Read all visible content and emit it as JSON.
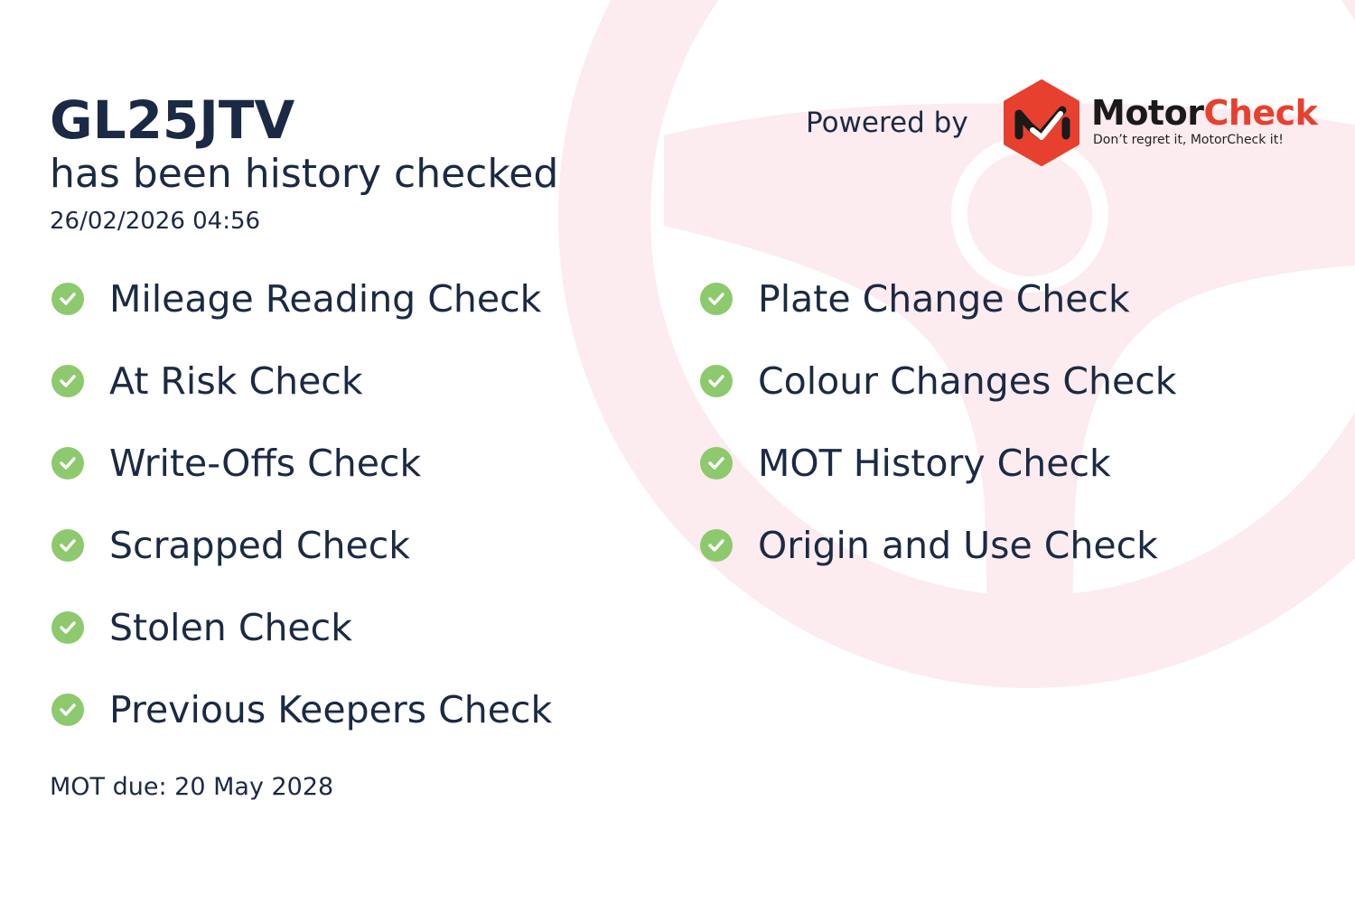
{
  "vehicle": {
    "registration": "GL25JTV",
    "subtitle": "has been history checked",
    "checked_at": "26/02/2026 04:56",
    "mot_due": "MOT due: 20 May 2028"
  },
  "branding": {
    "powered_by": "Powered by",
    "brand_part1": "Motor",
    "brand_part2": "Check",
    "tagline": "Don’t regret it, MotorCheck it!",
    "brand_red": "#e8402f",
    "brand_dark": "#1a1a1a"
  },
  "checks_left": [
    {
      "label": "Mileage Reading Check",
      "icon": "check-circle-icon"
    },
    {
      "label": "At Risk Check",
      "icon": "check-circle-icon"
    },
    {
      "label": "Write-Offs Check",
      "icon": "check-circle-icon"
    },
    {
      "label": "Scrapped Check",
      "icon": "check-circle-icon"
    },
    {
      "label": "Stolen Check",
      "icon": "check-circle-icon"
    },
    {
      "label": "Previous Keepers Check",
      "icon": "check-circle-icon"
    }
  ],
  "checks_right": [
    {
      "label": "Plate Change Check",
      "icon": "check-circle-icon"
    },
    {
      "label": "Colour Changes Check",
      "icon": "check-circle-icon"
    },
    {
      "label": "MOT History Check",
      "icon": "check-circle-icon"
    },
    {
      "label": "Origin and Use Check",
      "icon": "check-circle-icon"
    }
  ],
  "colors": {
    "text": "#1b2a44",
    "check_green": "#8dc96d",
    "wheel_pink": "#fcebef"
  }
}
